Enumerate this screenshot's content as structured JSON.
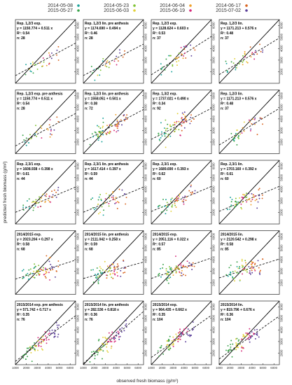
{
  "legend": [
    {
      "date": "2014-05-08",
      "color": "#1aa39a"
    },
    {
      "date": "2014-05-23",
      "color": "#7ec233"
    },
    {
      "date": "2014-06-04",
      "color": "#f0a12a"
    },
    {
      "date": "2014-06-17",
      "color": "#d9641f"
    },
    {
      "date": "2015-05-27",
      "color": "#3aa34a"
    },
    {
      "date": "2015-06-03",
      "color": "#e3d13a"
    },
    {
      "date": "2015-06-19",
      "color": "#d6297a"
    },
    {
      "date": "2015-07-02",
      "color": "#5b3f99"
    }
  ],
  "axes": {
    "xlabel": "observed fresh biomass (g/m²)",
    "ylabel": "predicted fresh biomass (g/m²)",
    "xticks": [
      "1000",
      "2000",
      "3000",
      "4000",
      "5000",
      "6000"
    ],
    "yticks": [
      "2000",
      "3000",
      "4000",
      "5000",
      "6000"
    ]
  },
  "chart_data": {
    "type": "scatter",
    "xlim": [
      1000,
      6500
    ],
    "ylim": [
      1000,
      6500
    ],
    "grid": false,
    "legend_position": "top",
    "panels": [
      {
        "title": "Rep. 1,2/3 exp.",
        "equation": "y = 1150.774 + 0.511 x",
        "r2": "R²: 0.54",
        "n": "n: 28",
        "intercept": 1150.774,
        "slope": 0.511
      },
      {
        "title": "Rep. 1,2/3 lin. pre anthesis",
        "equation": "y = 1174.690 + 0.494 x",
        "r2": "R²: 0.46",
        "n": "n: 28",
        "intercept": 1174.69,
        "slope": 0.494
      },
      {
        "title": "Rep. 1,2/3 exp.",
        "equation": "y = 1128.624 + 0.603 x",
        "r2": "R²: 0.53",
        "n": "n: 37",
        "intercept": 1128.624,
        "slope": 0.603
      },
      {
        "title": "Rep. 1,2/3 lin.",
        "equation": "y = 1171.213 + 0.576 x",
        "r2": "R²: 0.48",
        "n": "n: 37",
        "intercept": 1171.213,
        "slope": 0.576
      },
      {
        "title": "Rep. 1,2/3 exp. pre anthesis",
        "equation": "y = 1150.774 + 0.511 x",
        "r2": "R²: 0.54",
        "n": "n: 28",
        "intercept": 1150.774,
        "slope": 0.511
      },
      {
        "title": "Rep. 1,2/3 lin. pre anthesis",
        "equation": "y = 1558.051 + 0.501 x",
        "r2": "R²: 0.38",
        "n": "n: 72",
        "intercept": 1558.051,
        "slope": 0.501
      },
      {
        "title": "Rep. 1,3/2 exp.",
        "equation": "y = 1737.021 + 0.490 x",
        "r2": "R²: 0.34",
        "n": "n: 92",
        "intercept": 1737.021,
        "slope": 0.49
      },
      {
        "title": "Rep. 1,2/3 lin.",
        "equation": "y = 1171.213 + 0.576 x",
        "r2": "R²: 0.48",
        "n": "n: 37",
        "intercept": 1171.213,
        "slope": 0.576
      },
      {
        "title": "Rep. 2,3/1 exp.",
        "equation": "y = 1608.938 + 0.398 x",
        "r2": "R²: 0.61",
        "n": "n: 44",
        "intercept": 1608.938,
        "slope": 0.398
      },
      {
        "title": "Rep. 2,3/1 lin. pre anthesis",
        "equation": "y = 1617.414 + 0.397 x",
        "r2": "R²: 0.59",
        "n": "n: 44",
        "intercept": 1617.414,
        "slope": 0.397
      },
      {
        "title": "Rep. 2,3/1 exp.",
        "equation": "y = 1689.690 + 0.393 x",
        "r2": "R²: 0.62",
        "n": "n: 60",
        "intercept": 1689.69,
        "slope": 0.393
      },
      {
        "title": "Rep. 2,3/1 lin.",
        "equation": "y = 1703.160 + 0.392 x",
        "r2": "R²: 0.61",
        "n": "n: 60",
        "intercept": 1703.16,
        "slope": 0.392
      },
      {
        "title": "2014/2015 exp.",
        "equation": "y = 2023.204 + 0.297 x",
        "r2": "R²: 0.58",
        "n": "n: 68",
        "intercept": 2023.204,
        "slope": 0.297
      },
      {
        "title": "2014/2015 lin. pre anthesis",
        "equation": "y = 2111.042 + 0.258 x",
        "r2": "R²: 0.59",
        "n": "n: 68",
        "intercept": 2111.042,
        "slope": 0.258
      },
      {
        "title": "2014/2015 exp.",
        "equation": "y = 2051.116 + 0.322 x",
        "r2": "R²: 0.57",
        "n": "n: 85",
        "intercept": 2051.116,
        "slope": 0.322
      },
      {
        "title": "2014/2015 lin.",
        "equation": "y = 2120.542 + 0.298 x",
        "r2": "R²: 0.58",
        "n": "n: 85",
        "intercept": 2120.542,
        "slope": 0.298
      },
      {
        "title": "2015/2014 exp. pre anthesis",
        "equation": "y = 571.742 + 0.717 x",
        "r2": "R²: 0.35",
        "n": "n: 76",
        "intercept": 571.742,
        "slope": 0.717
      },
      {
        "title": "2015/2014 lin. pre anthesis",
        "equation": "y = 282.536 + 0.818 x",
        "r2": "R²: 0.36",
        "n": "n: 76",
        "intercept": 282.536,
        "slope": 0.818
      },
      {
        "title": "2015/2014 exp.",
        "equation": "y = 964.435 + 0.662 x",
        "r2": "R²: 0.35",
        "n": "n: 104",
        "intercept": 964.435,
        "slope": 0.662
      },
      {
        "title": "2015/2014 lin.",
        "equation": "y = 819.796 + 0.676 x",
        "r2": "R²: 0.36",
        "n": "n: 104",
        "intercept": 819.796,
        "slope": 0.676
      }
    ]
  }
}
